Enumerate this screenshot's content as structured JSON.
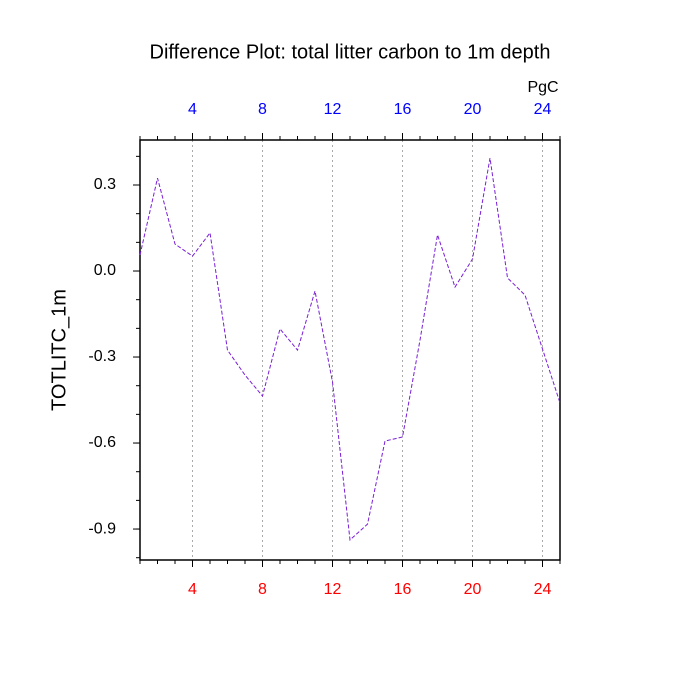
{
  "chart_data": {
    "type": "line",
    "title": "Difference Plot: total litter carbon to 1m depth",
    "y_label": "TOTLITC_1m",
    "top_axis_label": "PgC",
    "x": [
      1,
      2,
      3,
      4,
      5,
      6,
      7,
      8,
      9,
      10,
      11,
      12,
      13,
      14,
      15,
      16,
      17,
      18,
      19,
      20,
      21,
      22,
      23,
      24,
      25
    ],
    "series": [
      {
        "name": "TOTLITC_1m",
        "color": "#7a1fd6",
        "values": [
          0.056,
          0.324,
          0.094,
          0.052,
          0.133,
          -0.276,
          -0.363,
          -0.436,
          -0.202,
          -0.276,
          -0.07,
          -0.387,
          -0.938,
          -0.883,
          -0.593,
          -0.579,
          -0.241,
          0.126,
          -0.056,
          0.042,
          0.394,
          -0.024,
          -0.084,
          -0.272,
          -0.46
        ]
      }
    ],
    "xlim": [
      1,
      25
    ],
    "ylim": [
      -1.008,
      0.457
    ],
    "xticks": [
      4,
      8,
      12,
      16,
      20,
      24
    ],
    "yticks": [
      0.3,
      {
        "value": 0,
        "label": "0.0"
      },
      -0.3,
      -0.6,
      -0.9
    ],
    "xminorticks": [
      1,
      2,
      3,
      4,
      5,
      6,
      7,
      8,
      9,
      10,
      11,
      12,
      13,
      14,
      15,
      16,
      17,
      18,
      19,
      20,
      21,
      22,
      23,
      24,
      25
    ],
    "yminorticks": [
      -1.0,
      -0.9,
      -0.8,
      -0.7,
      -0.6,
      -0.5,
      -0.4,
      -0.3,
      -0.2,
      -0.1,
      0,
      0.1,
      0.2,
      0.3,
      0.4
    ],
    "top_tick_color": "#0000ff",
    "bottom_tick_color": "#ff0000",
    "grid": true
  }
}
